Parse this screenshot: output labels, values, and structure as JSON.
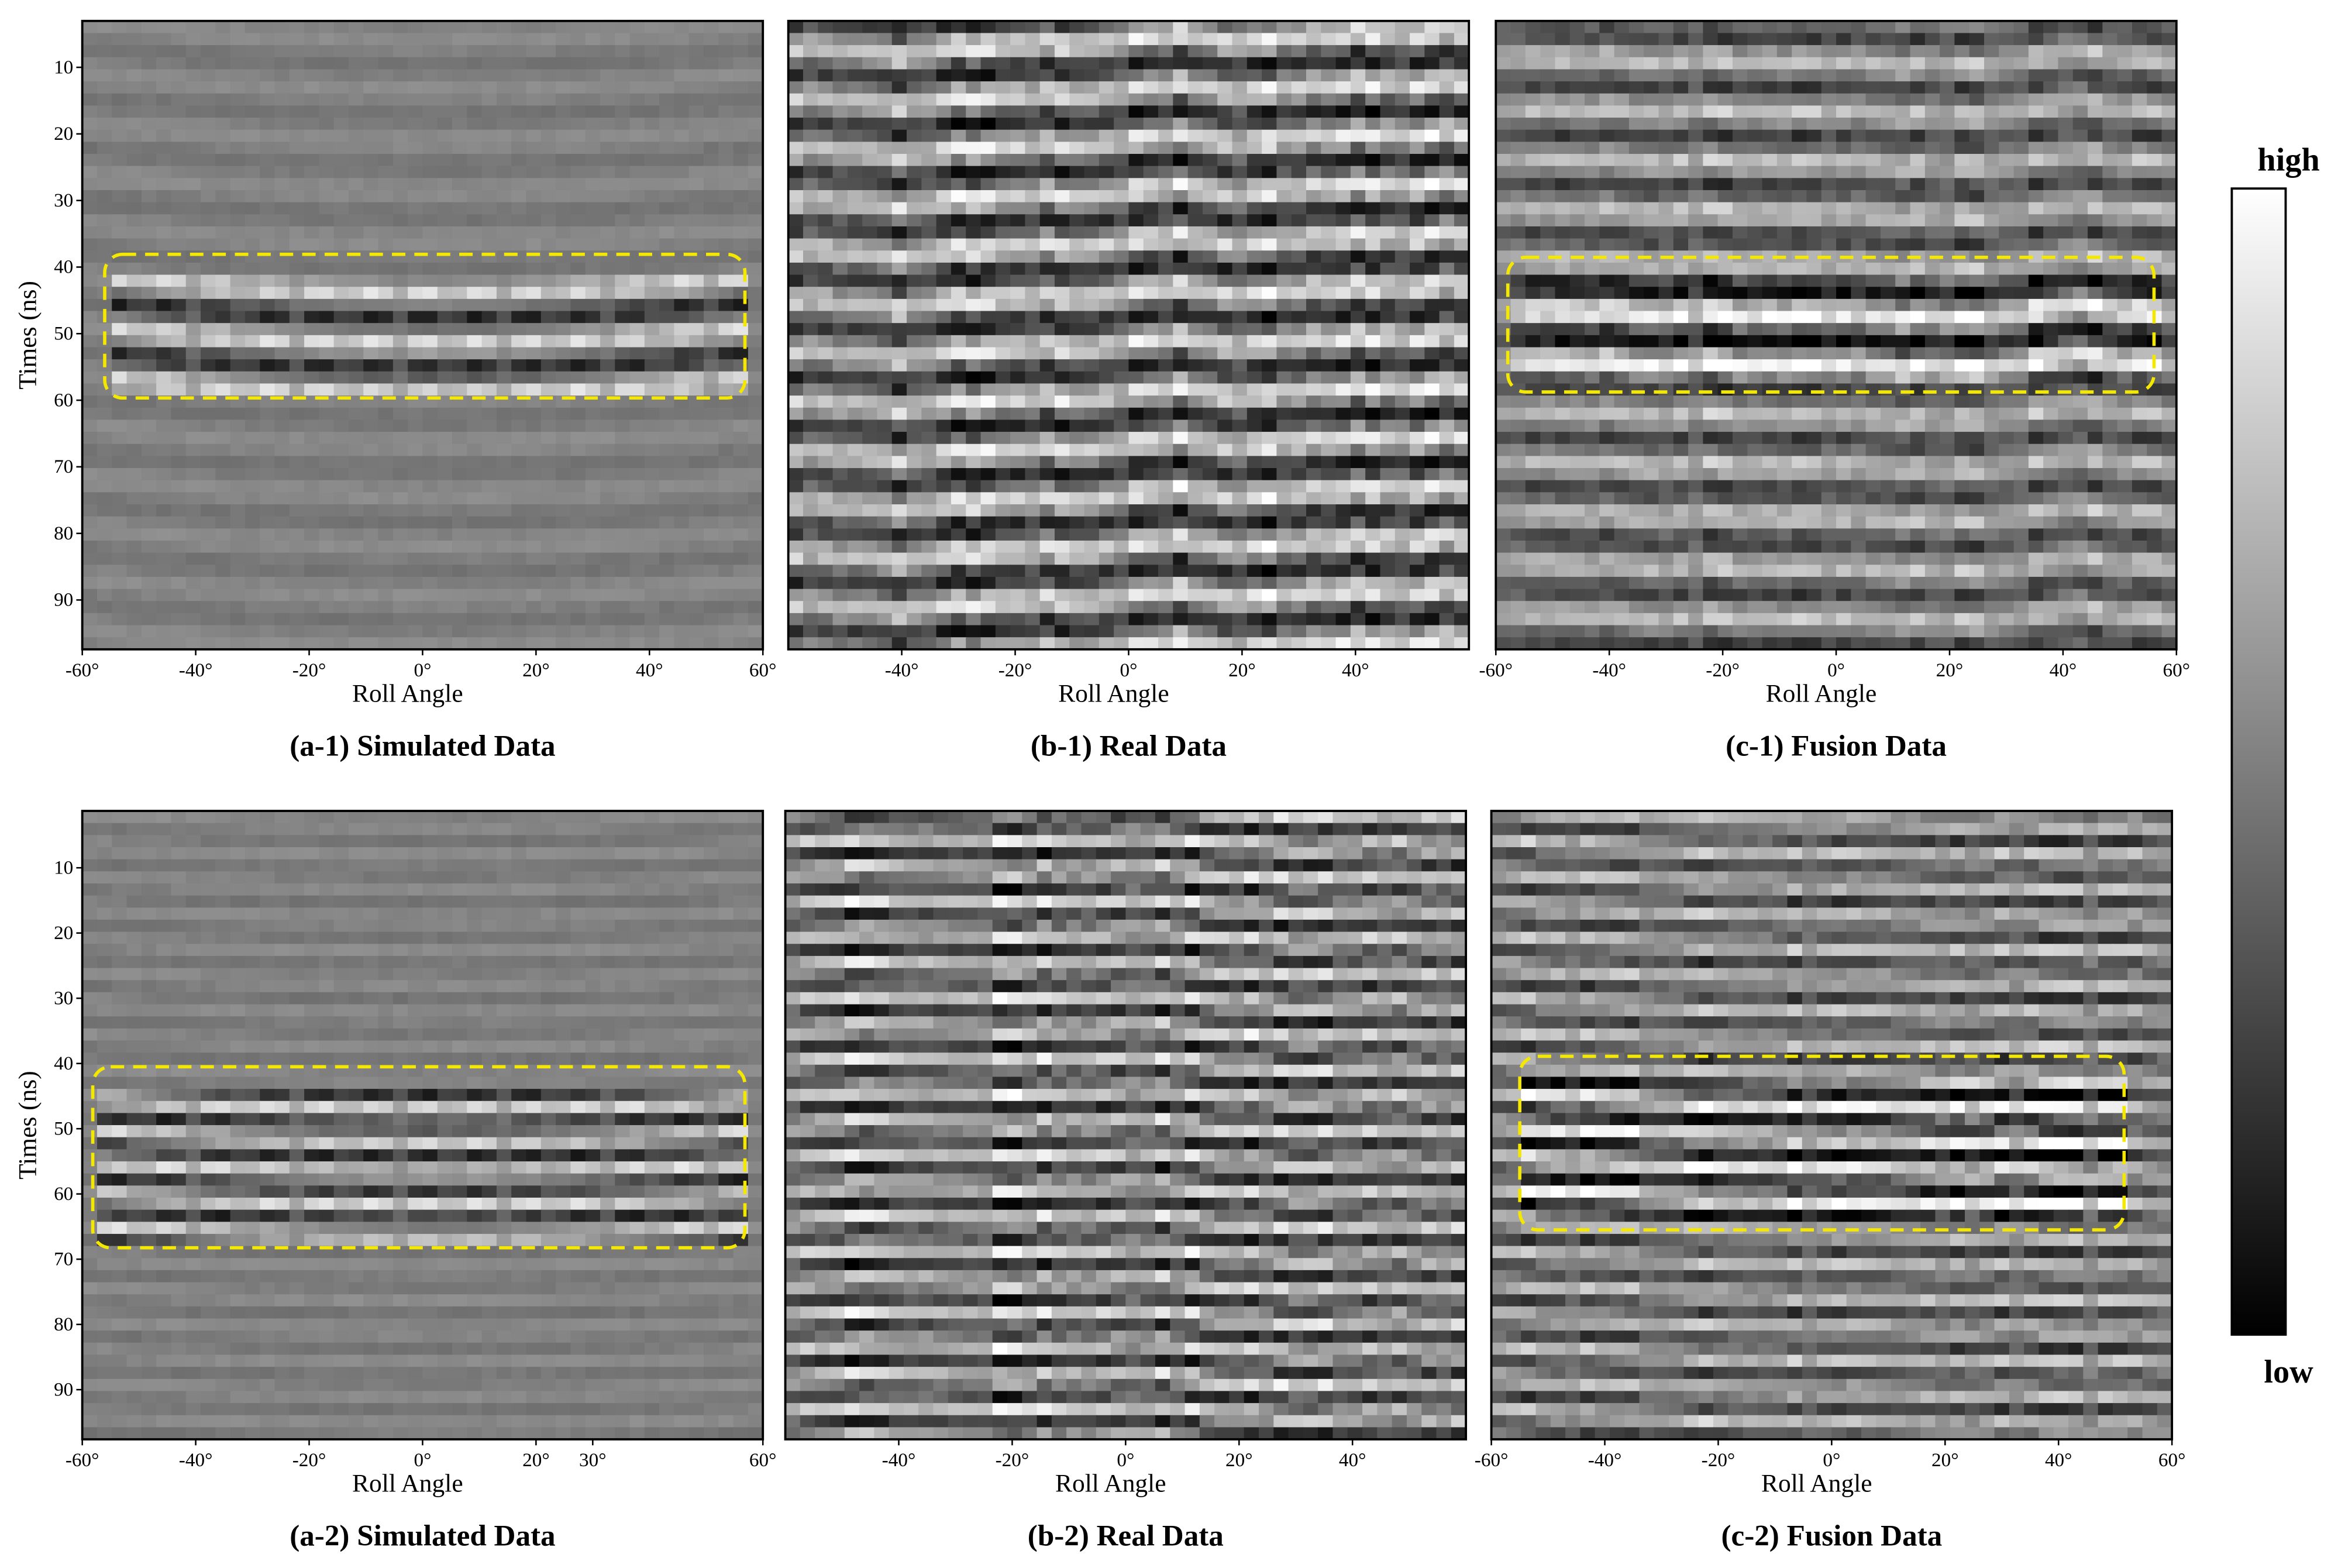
{
  "panels": [
    {
      "label": "(a-1) Simulated Data",
      "y_label": "Times (ns)",
      "x_label": "Roll Angle",
      "y_ticks": [
        "10",
        "20",
        "30",
        "40",
        "50",
        "60",
        "70",
        "80",
        "90"
      ],
      "x_ticks": [
        "-60°",
        "-40°",
        "-20°",
        "0°",
        "20°",
        "40°",
        "60°"
      ]
    },
    {
      "label": "(b-1) Real Data",
      "x_label": "Roll Angle",
      "x_ticks": [
        "-40°",
        "-20°",
        "0°",
        "20°",
        "40°"
      ]
    },
    {
      "label": "(c-1) Fusion Data",
      "x_label": "Roll Angle",
      "x_ticks": [
        "-60°",
        "-40°",
        "-20°",
        "0°",
        "20°",
        "40°",
        "60°"
      ]
    },
    {
      "label": "(a-2) Simulated Data",
      "y_label": "Times (ns)",
      "x_label": "Roll Angle",
      "y_ticks": [
        "10",
        "20",
        "30",
        "40",
        "50",
        "60",
        "70",
        "80",
        "90"
      ],
      "x_ticks": [
        "-60°",
        "-40°",
        "-20°",
        "0°",
        "20°",
        "30°",
        "60°"
      ]
    },
    {
      "label": "(b-2) Real Data",
      "x_label": "Roll Angle",
      "x_ticks": [
        "-40°",
        "-20°",
        "0°",
        "20°",
        "40°"
      ]
    },
    {
      "label": "(c-2) Fusion Data",
      "x_label": "Roll Angle",
      "x_ticks": [
        "-60°",
        "-40°",
        "-20°",
        "0°",
        "20°",
        "40°",
        "60°"
      ]
    }
  ],
  "colorbar": {
    "high": "high",
    "low": "low"
  }
}
